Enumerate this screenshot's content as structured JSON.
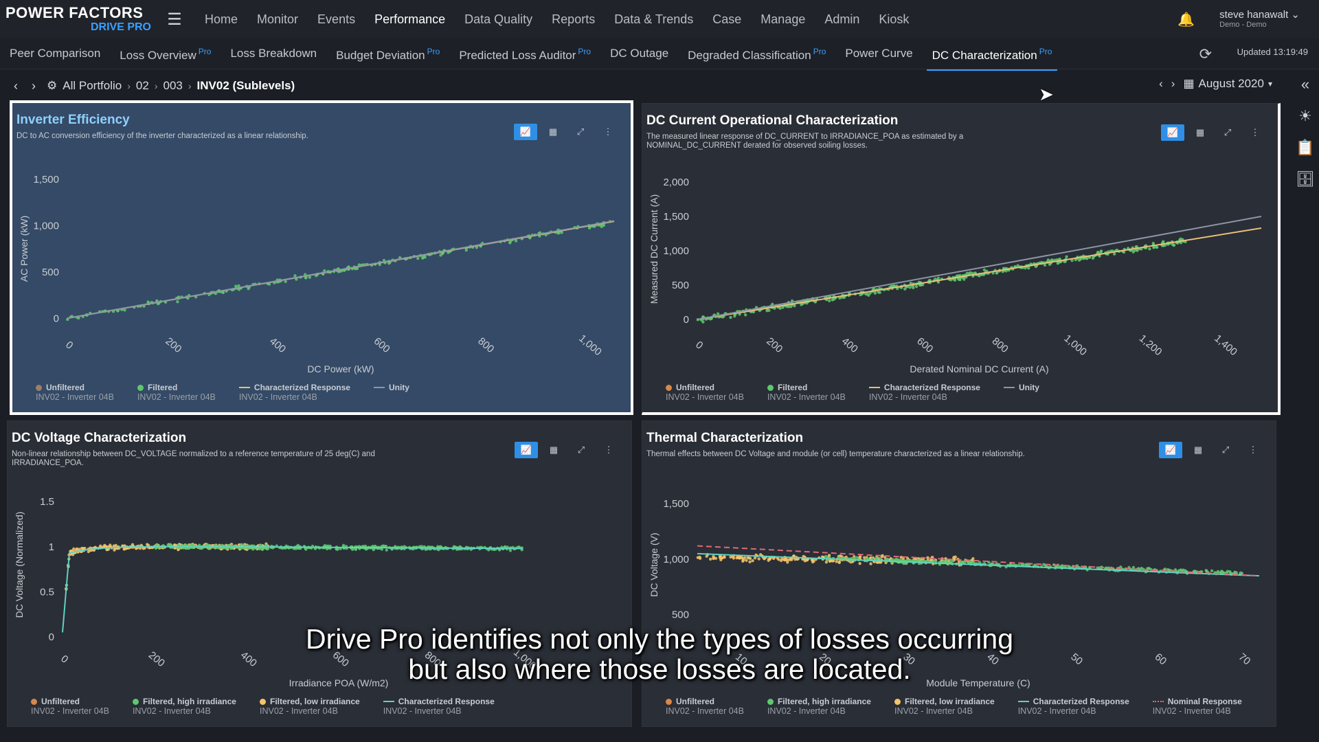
{
  "app": {
    "logo_line1": "POWER FACTORS",
    "logo_line2": "DRIVE PRO"
  },
  "nav": [
    "Home",
    "Monitor",
    "Events",
    "Performance",
    "Data Quality",
    "Reports",
    "Data & Trends",
    "Case",
    "Manage",
    "Admin",
    "Kiosk"
  ],
  "nav_active": "Performance",
  "user": {
    "name": "steve hanawalt",
    "role": "Demo - Demo"
  },
  "subnav": [
    {
      "label": "Peer Comparison",
      "pro": ""
    },
    {
      "label": "Loss Overview",
      "pro": "Pro"
    },
    {
      "label": "Loss Breakdown",
      "pro": ""
    },
    {
      "label": "Budget Deviation",
      "pro": "Pro"
    },
    {
      "label": "Predicted Loss Auditor",
      "pro": "Pro"
    },
    {
      "label": "DC Outage",
      "pro": ""
    },
    {
      "label": "Degraded Classification",
      "pro": "Pro"
    },
    {
      "label": "Power Curve",
      "pro": ""
    },
    {
      "label": "DC Characterization",
      "pro": "Pro"
    }
  ],
  "subnav_active": "DC Characterization",
  "updated": "Updated 13:19:49",
  "breadcrumb": [
    "All Portfolio",
    "02",
    "003",
    "INV02 (Sublevels)"
  ],
  "date_picker": "August 2020",
  "caption_line1": "Drive Pro identifies not only the types of losses occurring",
  "caption_line2": "but also where those losses are located.",
  "colors": {
    "unfiltered": "#d8884a",
    "filtered": "#5ec86e",
    "low_irr": "#f4c46a",
    "characterized": "#e8c07a",
    "characterized_teal": "#5fd3c2",
    "unity": "#8c96a6",
    "nominal": "#e06a7a"
  },
  "panels": [
    {
      "title": "Inverter Efficiency",
      "desc": "DC to AC conversion efficiency of the inverter characterized as a linear relationship.",
      "legend": [
        {
          "name": "Unfiltered",
          "sub": "INV02 - Inverter 04B",
          "kind": "dot",
          "color": "#9a7f6a"
        },
        {
          "name": "Filtered",
          "sub": "INV02 - Inverter 04B",
          "kind": "dot",
          "color": "#5ec86e"
        },
        {
          "name": "Characterized Response",
          "sub": "INV02 - Inverter 04B",
          "kind": "line",
          "color": "#e8c07a"
        },
        {
          "name": "Unity",
          "sub": "",
          "kind": "line",
          "color": "#8c96a6"
        }
      ]
    },
    {
      "title": "DC Current Operational Characterization",
      "desc": "The measured linear response of DC_CURRENT to IRRADIANCE_POA as estimated by a NOMINAL_DC_CURRENT derated for observed soiling losses.",
      "legend": [
        {
          "name": "Unfiltered",
          "sub": "INV02 - Inverter 04B",
          "kind": "dot",
          "color": "#d8884a"
        },
        {
          "name": "Filtered",
          "sub": "INV02 - Inverter 04B",
          "kind": "dot",
          "color": "#5ec86e"
        },
        {
          "name": "Characterized Response",
          "sub": "INV02 - Inverter 04B",
          "kind": "line",
          "color": "#e8c07a"
        },
        {
          "name": "Unity",
          "sub": "",
          "kind": "line",
          "color": "#8c96a6"
        }
      ]
    },
    {
      "title": "DC Voltage Characterization",
      "desc": "Non-linear relationship between DC_VOLTAGE normalized to a reference temperature of 25 deg(C) and IRRADIANCE_POA.",
      "legend": [
        {
          "name": "Unfiltered",
          "sub": "INV02 - Inverter 04B",
          "kind": "dot",
          "color": "#d8884a"
        },
        {
          "name": "Filtered, high irradiance",
          "sub": "INV02 - Inverter 04B",
          "kind": "dot",
          "color": "#5ec86e"
        },
        {
          "name": "Filtered, low irradiance",
          "sub": "INV02 - Inverter 04B",
          "kind": "dot",
          "color": "#f4c46a"
        },
        {
          "name": "Characterized Response",
          "sub": "INV02 - Inverter 04B",
          "kind": "line",
          "color": "#5fd3c2"
        }
      ]
    },
    {
      "title": "Thermal Characterization",
      "desc": "Thermal effects between DC Voltage and module (or cell) temperature characterized as a linear relationship.",
      "legend": [
        {
          "name": "Unfiltered",
          "sub": "INV02 - Inverter 04B",
          "kind": "dot",
          "color": "#d8884a"
        },
        {
          "name": "Filtered, high irradiance",
          "sub": "INV02 - Inverter 04B",
          "kind": "dot",
          "color": "#5ec86e"
        },
        {
          "name": "Filtered, low irradiance",
          "sub": "INV02 - Inverter 04B",
          "kind": "dot",
          "color": "#f4c46a"
        },
        {
          "name": "Characterized Response",
          "sub": "INV02 - Inverter 04B",
          "kind": "line",
          "color": "#5fd3c2"
        },
        {
          "name": "Nominal Response",
          "sub": "INV02 - Inverter 04B",
          "kind": "dashdot",
          "color": "#e06a7a"
        }
      ]
    }
  ],
  "chart_data": [
    {
      "type": "scatter",
      "title": "Inverter Efficiency",
      "xlabel": "DC Power (kW)",
      "ylabel": "AC Power (kW)",
      "xlim": [
        0,
        1050
      ],
      "ylim": [
        -50,
        1550
      ],
      "xticks": [
        0,
        200,
        400,
        600,
        800,
        1000
      ],
      "xtick_labels": [
        "0",
        "200",
        "400",
        "600",
        "800",
        "1,000"
      ],
      "yticks": [
        0,
        500,
        1000,
        1500
      ],
      "ytick_labels": [
        "0",
        "500",
        "1,000",
        "1,500"
      ],
      "series": [
        {
          "name": "Filtered",
          "kind": "scatter",
          "color": "#5ec86e",
          "trend": {
            "x0": 0,
            "y0": 0,
            "x1": 1050,
            "y1": 1040
          },
          "spread": 35,
          "n": 220
        },
        {
          "name": "Characterized Response",
          "kind": "line",
          "color": "#e8c07a",
          "x": [
            0,
            1050
          ],
          "y": [
            0,
            1045
          ]
        },
        {
          "name": "Unity",
          "kind": "line",
          "color": "#8c96a6",
          "x": [
            0,
            1050
          ],
          "y": [
            0,
            1050
          ]
        }
      ]
    },
    {
      "type": "scatter",
      "title": "DC Current Operational Characterization",
      "xlabel": "Derated Nominal DC Current (A)",
      "ylabel": "Measured DC Current (A)",
      "xlim": [
        0,
        1500
      ],
      "ylim": [
        -50,
        2100
      ],
      "xticks": [
        0,
        200,
        400,
        600,
        800,
        1000,
        1200,
        1400
      ],
      "xtick_labels": [
        "0",
        "200",
        "400",
        "600",
        "800",
        "1,000",
        "1,200",
        "1,400"
      ],
      "yticks": [
        0,
        500,
        1000,
        1500,
        2000
      ],
      "ytick_labels": [
        "0",
        "500",
        "1,000",
        "1,500",
        "2,000"
      ],
      "series": [
        {
          "name": "Filtered",
          "kind": "scatter",
          "color": "#5ec86e",
          "trend": {
            "x0": 0,
            "y0": 0,
            "x1": 1300,
            "y1": 1150
          },
          "spread": 60,
          "n": 420
        },
        {
          "name": "Characterized Response",
          "kind": "line",
          "color": "#e8c07a",
          "x": [
            0,
            1500
          ],
          "y": [
            0,
            1330
          ]
        },
        {
          "name": "Unity",
          "kind": "line",
          "color": "#8c96a6",
          "x": [
            0,
            1500
          ],
          "y": [
            0,
            1500
          ]
        }
      ]
    },
    {
      "type": "scatter",
      "title": "DC Voltage Characterization",
      "xlabel": "Irradiance POA (W/m2)",
      "ylabel": "DC Voltage (Normalized)",
      "xlim": [
        0,
        1200
      ],
      "ylim": [
        0,
        1.6
      ],
      "xticks": [
        0,
        200,
        400,
        600,
        800,
        1000
      ],
      "xtick_labels": [
        "0",
        "200",
        "400",
        "600",
        "800",
        "1,000"
      ],
      "yticks": [
        0,
        0.5,
        1,
        1.5
      ],
      "ytick_labels": [
        "0",
        "0.5",
        "1",
        "1.5"
      ],
      "series": [
        {
          "name": "Filtered, low irradiance",
          "kind": "scatter",
          "color": "#f4c46a",
          "xrange": [
            5,
            450
          ],
          "yfn": "knee",
          "spread": 0.04,
          "n": 260
        },
        {
          "name": "Filtered, high irradiance",
          "kind": "scatter",
          "color": "#5ec86e",
          "xrange": [
            200,
            1000
          ],
          "yfn": "knee",
          "spread": 0.03,
          "n": 420
        },
        {
          "name": "Characterized Response",
          "kind": "line",
          "color": "#5fd3c2",
          "yfn": "knee"
        }
      ]
    },
    {
      "type": "scatter",
      "title": "Thermal Characterization",
      "xlabel": "Module Temperature (C)",
      "ylabel": "DC Voltage (V)",
      "xlim": [
        5,
        72
      ],
      "ylim": [
        300,
        1600
      ],
      "xticks": [
        10,
        20,
        30,
        40,
        50,
        60,
        70
      ],
      "xtick_labels": [
        "10",
        "20",
        "30",
        "40",
        "50",
        "60",
        "70"
      ],
      "yticks": [
        500,
        1000,
        1500
      ],
      "ytick_labels": [
        "500",
        "1,000",
        "1,500"
      ],
      "series": [
        {
          "name": "Filtered, low irradiance",
          "kind": "scatter",
          "color": "#f4c46a",
          "xrange": [
            5,
            38
          ],
          "trend": {
            "x0": 5,
            "y0": 1020,
            "x1": 38,
            "y1": 980
          },
          "spread": 45,
          "n": 260
        },
        {
          "name": "Filtered, high irradiance",
          "kind": "scatter",
          "color": "#5ec86e",
          "xrange": [
            20,
            70
          ],
          "trend": {
            "x0": 20,
            "y0": 1010,
            "x1": 70,
            "y1": 870
          },
          "spread": 25,
          "n": 340
        },
        {
          "name": "Characterized Response",
          "kind": "line",
          "color": "#5fd3c2",
          "x": [
            5,
            72
          ],
          "y": [
            1050,
            850
          ]
        },
        {
          "name": "Nominal Response",
          "kind": "dash",
          "color": "#e06a7a",
          "x": [
            5,
            72
          ],
          "y": [
            1120,
            850
          ]
        }
      ]
    }
  ]
}
